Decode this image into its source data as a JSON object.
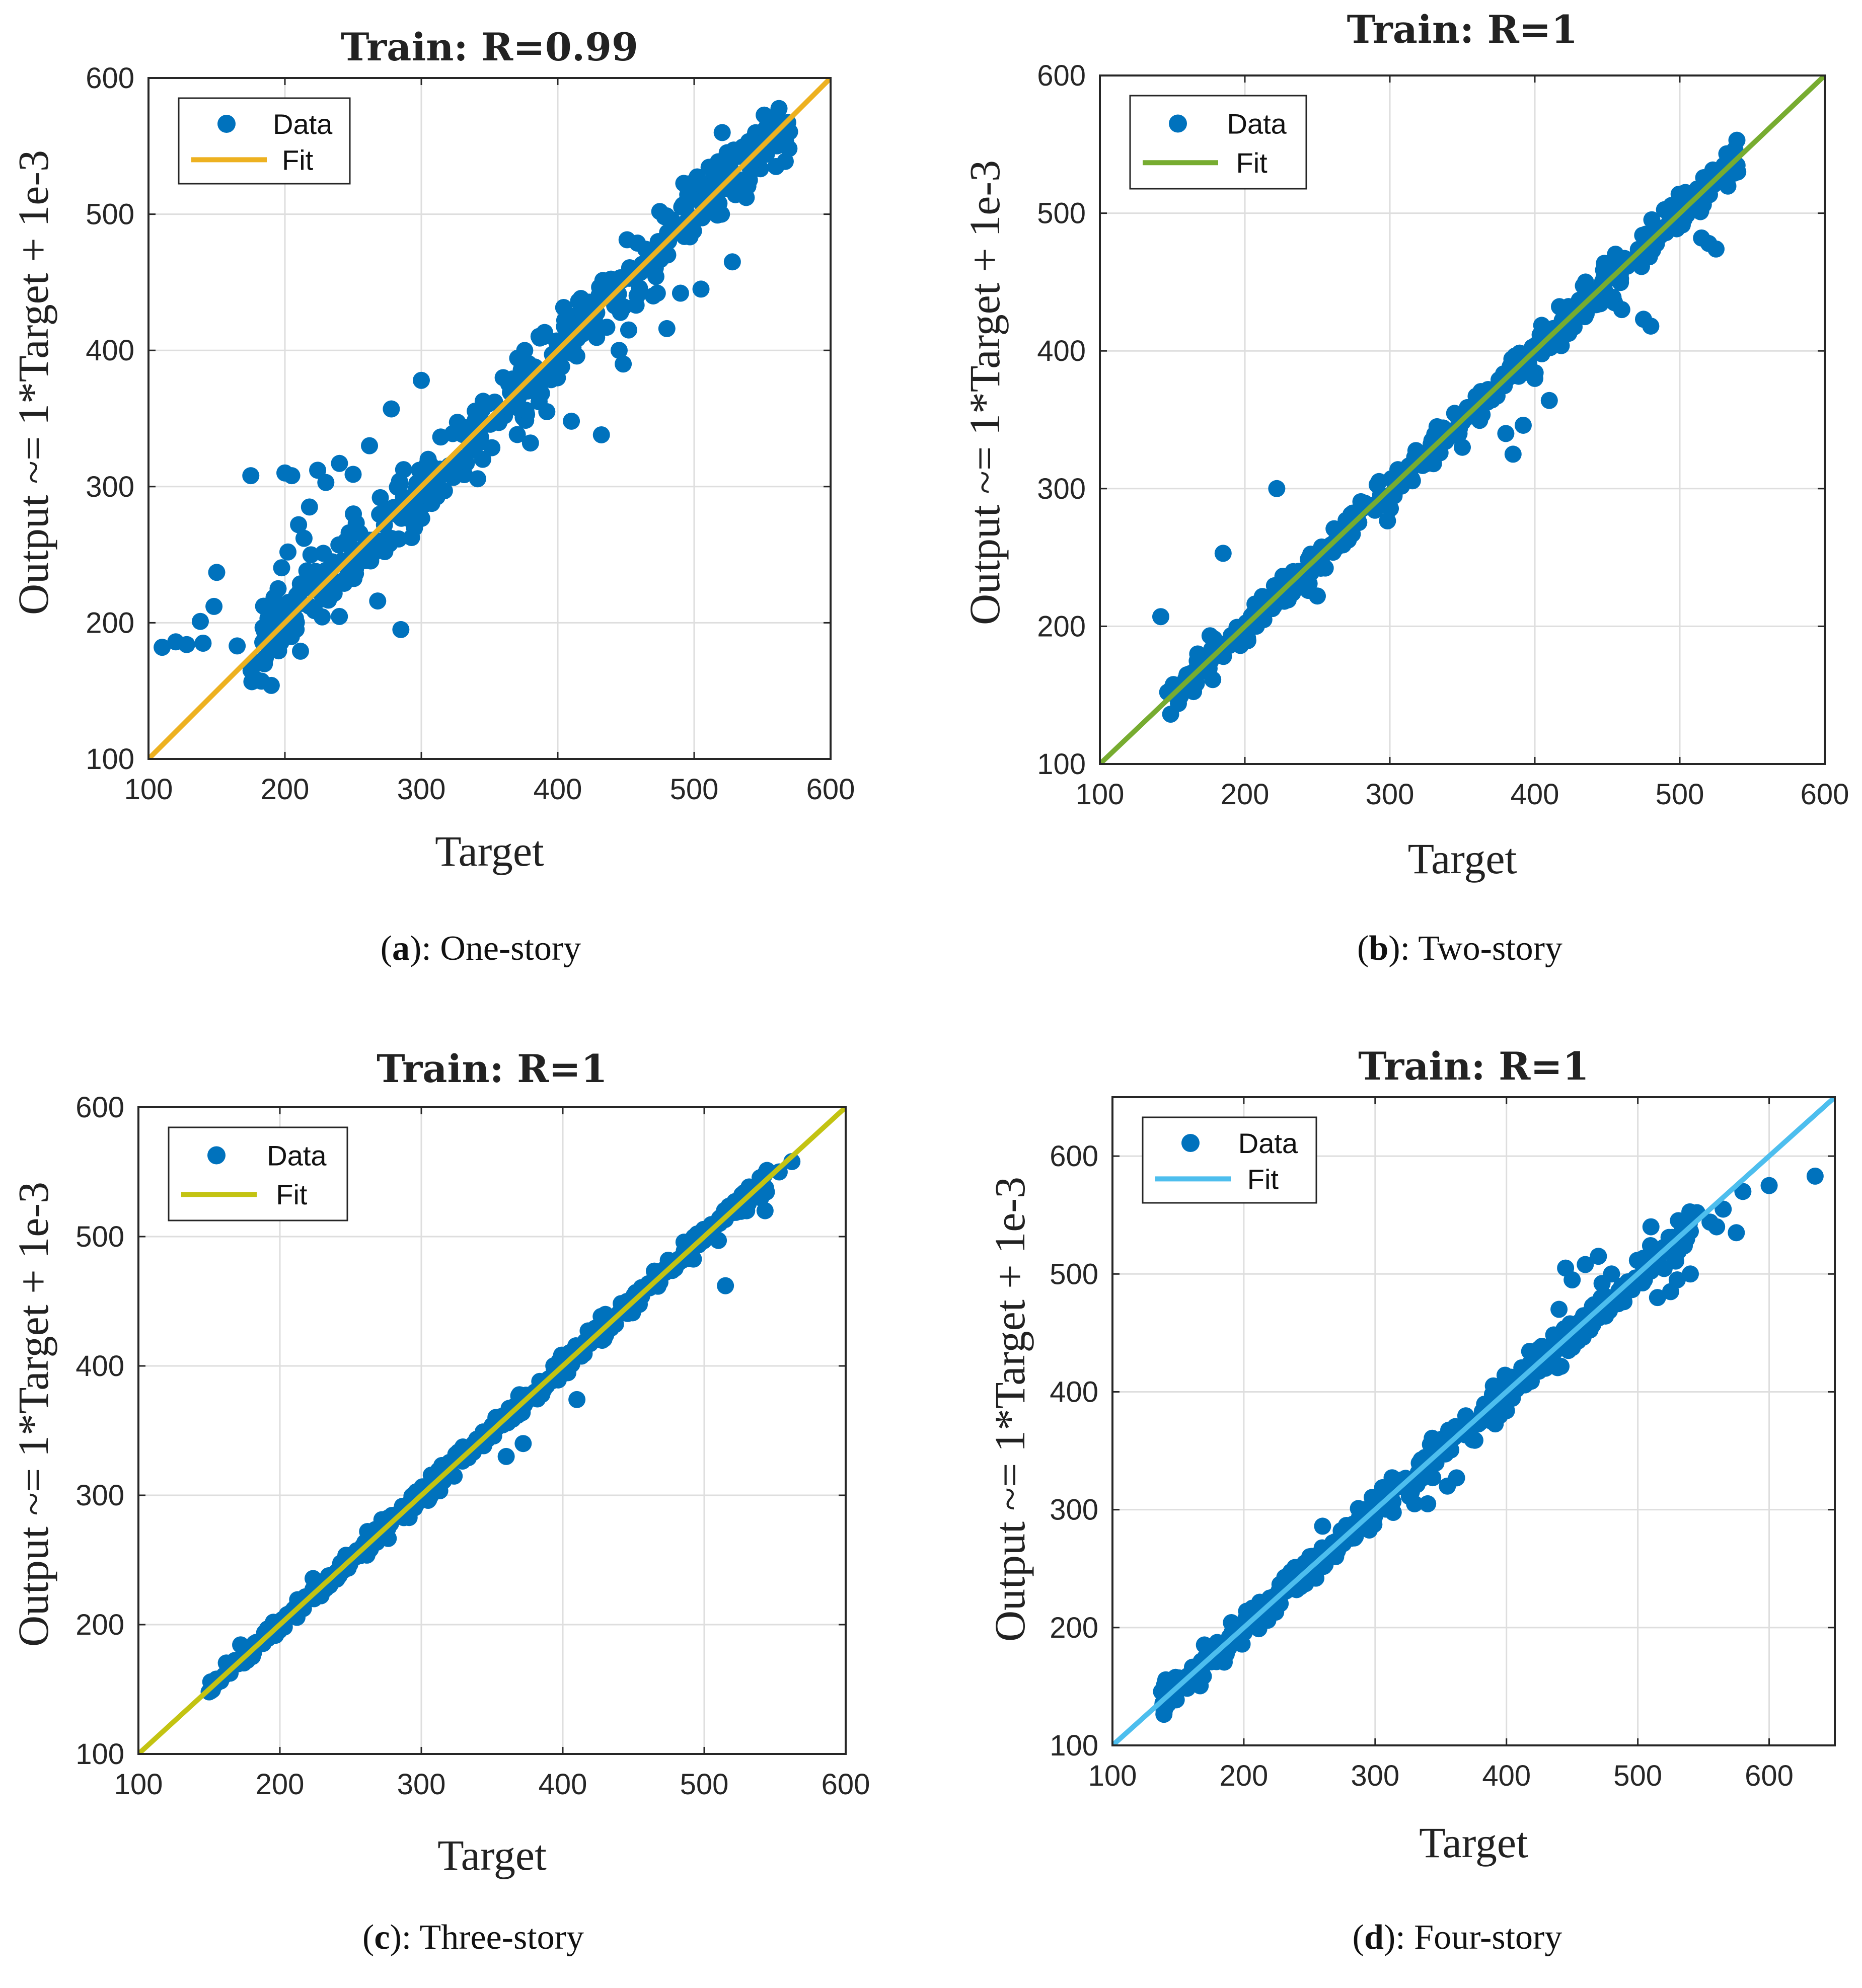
{
  "figure": {
    "captions": [
      {
        "letter": "a",
        "text": "): One-story"
      },
      {
        "letter": "b",
        "text": "): Two-story"
      },
      {
        "letter": "c",
        "text": "): Three-story"
      },
      {
        "letter": "d",
        "text": "): Four-story"
      }
    ]
  },
  "chart_data": [
    {
      "type": "scatter",
      "title": "Train: R=0.99",
      "xlabel": "Target",
      "ylabel": "Output ~= 1*Target + 1e-3",
      "xlim": [
        100,
        600
      ],
      "ylim": [
        100,
        600
      ],
      "xticks": [
        100,
        200,
        300,
        400,
        500,
        600
      ],
      "yticks": [
        100,
        200,
        300,
        400,
        500,
        600
      ],
      "grid": true,
      "legend": {
        "location": "top-left",
        "entries": [
          "Data",
          "Fit"
        ]
      },
      "fit": {
        "slope": 1,
        "intercept": 0.001,
        "color": "#edb120"
      },
      "marker_color": "#0072bd",
      "band": {
        "x_start": 175,
        "x_end": 570,
        "spread": 14,
        "count": 420,
        "seed": 11
      },
      "series": [
        {
          "name": "Data",
          "points": [
            [
              110,
              182
            ],
            [
              120,
              186
            ],
            [
              128,
              184
            ],
            [
              138,
              201
            ],
            [
              140,
              185
            ],
            [
              148,
              212
            ],
            [
              150,
              237
            ],
            [
              165,
              183
            ],
            [
              175,
              308
            ],
            [
              190,
              154
            ],
            [
              195,
              225
            ],
            [
              200,
              310
            ],
            [
              205,
              308
            ],
            [
              210,
              272
            ],
            [
              214,
              262
            ],
            [
              218,
              285
            ],
            [
              224,
              312
            ],
            [
              230,
              303
            ],
            [
              240,
              317
            ],
            [
              250,
              309
            ],
            [
              262,
              330
            ],
            [
              268,
              216
            ],
            [
              278,
              357
            ],
            [
              285,
              195
            ],
            [
              300,
              378
            ],
            [
              305,
              320
            ],
            [
              320,
              310
            ],
            [
              330,
              344
            ],
            [
              345,
              320
            ],
            [
              360,
              380
            ],
            [
              380,
              332
            ],
            [
              392,
              355
            ],
            [
              400,
              398
            ],
            [
              410,
              348
            ],
            [
              418,
              412
            ],
            [
              432,
              338
            ],
            [
              445,
              400
            ],
            [
              448,
              390
            ],
            [
              452,
              415
            ],
            [
              470,
              440
            ],
            [
              473,
              442
            ],
            [
              480,
              416
            ],
            [
              490,
              442
            ],
            [
              505,
              445
            ],
            [
              520,
              500
            ],
            [
              528,
              465
            ],
            [
              535,
              516
            ],
            [
              560,
              535
            ]
          ]
        }
      ]
    },
    {
      "type": "scatter",
      "title": "Train: R=1",
      "xlabel": "Target",
      "ylabel": "Output ~= 1*Target + 1e-3",
      "xlim": [
        100,
        600
      ],
      "ylim": [
        100,
        600
      ],
      "xticks": [
        100,
        200,
        300,
        400,
        500,
        600
      ],
      "yticks": [
        100,
        200,
        300,
        400,
        500,
        600
      ],
      "grid": true,
      "legend": {
        "location": "top-left",
        "entries": [
          "Data",
          "Fit"
        ]
      },
      "fit": {
        "slope": 1,
        "intercept": 0.001,
        "color": "#77ac30"
      },
      "marker_color": "#0072bd",
      "band": {
        "x_start": 145,
        "x_end": 540,
        "spread": 6,
        "count": 440,
        "seed": 23
      },
      "series": [
        {
          "name": "Data",
          "points": [
            [
              142,
              207
            ],
            [
              185,
              253
            ],
            [
              222,
              300
            ],
            [
              250,
              222
            ],
            [
              325,
              318
            ],
            [
              350,
              330
            ],
            [
              380,
              340
            ],
            [
              385,
              325
            ],
            [
              392,
              346
            ],
            [
              400,
              380
            ],
            [
              410,
              364
            ],
            [
              435,
              450
            ],
            [
              455,
              435
            ],
            [
              460,
              430
            ],
            [
              475,
              423
            ],
            [
              480,
              418
            ],
            [
              500,
              497
            ],
            [
              515,
              482
            ],
            [
              520,
              478
            ],
            [
              525,
              474
            ],
            [
              530,
              523
            ],
            [
              540,
              530
            ]
          ]
        }
      ]
    },
    {
      "type": "scatter",
      "title": "Train: R=1",
      "xlabel": "Target",
      "ylabel": "Output ~= 1*Target + 1e-3",
      "xlim": [
        100,
        600
      ],
      "ylim": [
        100,
        600
      ],
      "xticks": [
        100,
        200,
        300,
        400,
        500,
        600
      ],
      "yticks": [
        100,
        200,
        300,
        400,
        500,
        600
      ],
      "grid": true,
      "legend": {
        "location": "top-left",
        "entries": [
          "Data",
          "Fit"
        ]
      },
      "fit": {
        "slope": 1,
        "intercept": 0.001,
        "color": "#c3c312"
      },
      "marker_color": "#0072bd",
      "band": {
        "x_start": 150,
        "x_end": 545,
        "spread": 4,
        "count": 460,
        "seed": 37
      },
      "series": [
        {
          "name": "Data",
          "points": [
            [
              150,
              148
            ],
            [
              262,
              272
            ],
            [
              320,
              318
            ],
            [
              360,
              330
            ],
            [
              372,
              340
            ],
            [
              390,
              390
            ],
            [
              410,
              374
            ],
            [
              450,
              450
            ],
            [
              495,
              502
            ],
            [
              510,
              497
            ],
            [
              515,
              462
            ],
            [
              530,
              520
            ],
            [
              540,
              530
            ],
            [
              543,
              520
            ],
            [
              553,
              550
            ],
            [
              562,
              558
            ]
          ]
        }
      ]
    },
    {
      "type": "scatter",
      "title": "Train: R=1",
      "xlabel": "Target",
      "ylabel": "Output ~= 1*Target + 1e-3",
      "xlim": [
        100,
        650
      ],
      "ylim": [
        100,
        650
      ],
      "xticks": [
        100,
        200,
        300,
        400,
        500,
        600
      ],
      "yticks": [
        100,
        200,
        300,
        400,
        500,
        600
      ],
      "grid": true,
      "legend": {
        "location": "top-left",
        "entries": [
          "Data",
          "Fit"
        ]
      },
      "fit": {
        "slope": 1,
        "intercept": 0.001,
        "color": "#4dbeee"
      },
      "marker_color": "#0072bd",
      "band": {
        "x_start": 135,
        "x_end": 540,
        "spread": 7,
        "count": 480,
        "seed": 53
      },
      "series": [
        {
          "name": "Data",
          "points": [
            [
              260,
              286
            ],
            [
              330,
              305
            ],
            [
              340,
              305
            ],
            [
              355,
              320
            ],
            [
              362,
              327
            ],
            [
              380,
              375
            ],
            [
              390,
              405
            ],
            [
              395,
              380
            ],
            [
              400,
              384
            ],
            [
              440,
              470
            ],
            [
              445,
              505
            ],
            [
              450,
              495
            ],
            [
              460,
              508
            ],
            [
              465,
              470
            ],
            [
              470,
              515
            ],
            [
              480,
              500
            ],
            [
              505,
              495
            ],
            [
              510,
              540
            ],
            [
              515,
              480
            ],
            [
              525,
              485
            ],
            [
              530,
              495
            ],
            [
              540,
              500
            ],
            [
              545,
              552
            ],
            [
              555,
              544
            ],
            [
              560,
              540
            ],
            [
              565,
              555
            ],
            [
              575,
              535
            ],
            [
              580,
              570
            ],
            [
              600,
              575
            ],
            [
              635,
              583
            ]
          ]
        }
      ]
    }
  ]
}
